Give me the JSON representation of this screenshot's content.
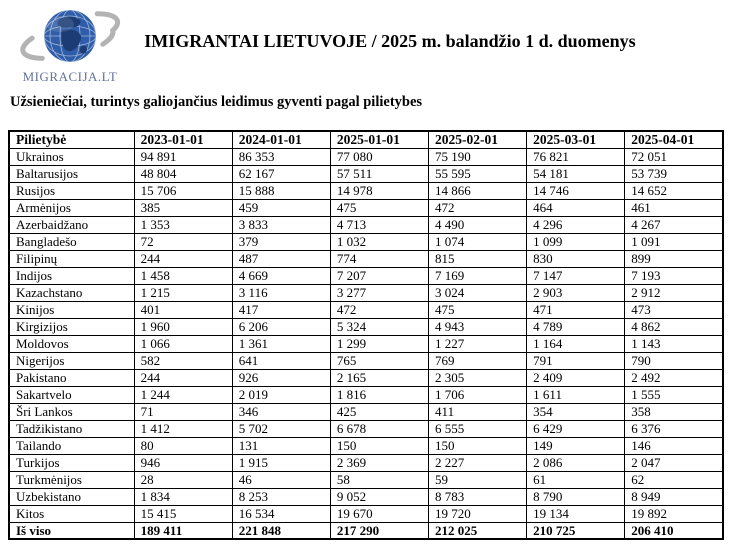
{
  "logo": {
    "text": "MIGRACIJA.LT"
  },
  "header": {
    "title": "IMIGRANTAI LIETUVOJE / 2025 m. balandžio 1 d. duomenys",
    "subtitle": "Užsieniečiai, turintys galiojančius leidimus gyventi pagal pilietybes"
  },
  "colors": {
    "globe_blue": "#2f5da9",
    "globe_land": "#1b3c74",
    "swoosh_gray": "#b3b3b3",
    "logo_text": "#64739a",
    "table_border": "#000000"
  },
  "table": {
    "columns": [
      "Pilietybė",
      "2023-01-01",
      "2024-01-01",
      "2025-01-01",
      "2025-02-01",
      "2025-03-01",
      "2025-04-01"
    ],
    "rows": [
      {
        "label": "Ukrainos",
        "values": [
          "94 891",
          "86 353",
          "77 080",
          "75 190",
          "76 821",
          "72 051"
        ]
      },
      {
        "label": "Baltarusijos",
        "values": [
          "48 804",
          "62 167",
          "57 511",
          "55 595",
          "54 181",
          "53 739"
        ]
      },
      {
        "label": "Rusijos",
        "values": [
          "15 706",
          "15 888",
          "14 978",
          "14 866",
          "14 746",
          "14 652"
        ]
      },
      {
        "label": "Armėnijos",
        "values": [
          "385",
          "459",
          "475",
          "472",
          "464",
          "461"
        ]
      },
      {
        "label": "Azerbaidžano",
        "values": [
          "1 353",
          "3 833",
          "4 713",
          "4 490",
          "4 296",
          "4 267"
        ]
      },
      {
        "label": "Bangladešo",
        "values": [
          "72",
          "379",
          "1 032",
          "1 074",
          "1 099",
          "1 091"
        ]
      },
      {
        "label": "Filipinų",
        "values": [
          "244",
          "487",
          "774",
          "815",
          "830",
          "899"
        ]
      },
      {
        "label": "Indijos",
        "values": [
          "1 458",
          "4 669",
          "7 207",
          "7 169",
          "7 147",
          "7 193"
        ]
      },
      {
        "label": "Kazachstano",
        "values": [
          "1 215",
          "3 116",
          "3 277",
          "3 024",
          "2 903",
          "2 912"
        ]
      },
      {
        "label": "Kinijos",
        "values": [
          "401",
          "417",
          "472",
          "475",
          "471",
          "473"
        ]
      },
      {
        "label": "Kirgizijos",
        "values": [
          "1 960",
          "6 206",
          "5 324",
          "4 943",
          "4 789",
          "4 862"
        ]
      },
      {
        "label": "Moldovos",
        "values": [
          "1 066",
          "1 361",
          "1 299",
          "1 227",
          "1 164",
          "1 143"
        ]
      },
      {
        "label": "Nigerijos",
        "values": [
          "582",
          "641",
          "765",
          "769",
          "791",
          "790"
        ]
      },
      {
        "label": "Pakistano",
        "values": [
          "244",
          "926",
          "2 165",
          "2 305",
          "2 409",
          "2 492"
        ]
      },
      {
        "label": "Sakartvelo",
        "values": [
          "1 244",
          "2 019",
          "1 816",
          "1 706",
          "1 611",
          "1 555"
        ]
      },
      {
        "label": "Šri Lankos",
        "values": [
          "71",
          "346",
          "425",
          "411",
          "354",
          "358"
        ]
      },
      {
        "label": "Tadžikistano",
        "values": [
          "1 412",
          "5 702",
          "6 678",
          "6 555",
          "6 429",
          "6 376"
        ]
      },
      {
        "label": "Tailando",
        "values": [
          "80",
          "131",
          "150",
          "150",
          "149",
          "146"
        ]
      },
      {
        "label": "Turkijos",
        "values": [
          "946",
          "1 915",
          "2 369",
          "2 227",
          "2 086",
          "2 047"
        ]
      },
      {
        "label": "Turkmėnijos",
        "values": [
          "28",
          "46",
          "58",
          "59",
          "61",
          "62"
        ]
      },
      {
        "label": "Uzbekistano",
        "values": [
          "1 834",
          "8 253",
          "9 052",
          "8 783",
          "8 790",
          "8 949"
        ]
      },
      {
        "label": "Kitos",
        "values": [
          "15 415",
          "16 534",
          "19 670",
          "19 720",
          "19 134",
          "19 892"
        ]
      }
    ],
    "total_row": {
      "label": "Iš viso",
      "values": [
        "189 411",
        "221 848",
        "217 290",
        "212 025",
        "210 725",
        "206 410"
      ]
    }
  }
}
